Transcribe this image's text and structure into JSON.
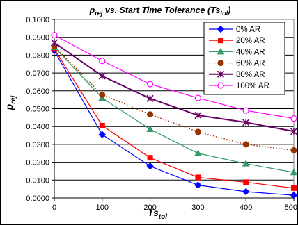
{
  "chart_data": {
    "type": "line",
    "title": {
      "main": "p",
      "main_sub": "rej",
      "rest": " vs. Start Time Tolerance (",
      "ts": "Ts",
      "ts_sub": "tol",
      "close": ")"
    },
    "xlabel": {
      "main": "Ts",
      "sub": "tol"
    },
    "ylabel": {
      "main": "p",
      "sub": "rej"
    },
    "x": [
      0,
      100,
      200,
      300,
      400,
      500
    ],
    "x_tick_labels": [
      "0",
      "100",
      "200",
      "300",
      "400",
      "500"
    ],
    "y_tick_labels": [
      "0.0000",
      "0.0100",
      "0.0200",
      "0.0300",
      "0.0400",
      "0.0500",
      "0.0600",
      "0.0700",
      "0.0800",
      "0.0900",
      "0.1000"
    ],
    "xlim": [
      0,
      500
    ],
    "ylim": [
      0,
      0.1
    ],
    "grid": "horizontal",
    "legend_position": "top-right",
    "series": [
      {
        "name": "0% AR",
        "values": [
          0.0825,
          0.0355,
          0.0178,
          0.0072,
          0.0035,
          0.0015
        ],
        "color": "#0000ff",
        "marker": "diamond",
        "dash": "solid"
      },
      {
        "name": "20% AR",
        "values": [
          0.0835,
          0.0405,
          0.0225,
          0.0115,
          0.0088,
          0.0055
        ],
        "color": "#ff0000",
        "marker": "square",
        "dash": "solid"
      },
      {
        "name": "40% AR",
        "values": [
          0.0845,
          0.056,
          0.0385,
          0.025,
          0.0192,
          0.0143
        ],
        "color": "#339966",
        "marker": "triangle",
        "dash": "solid"
      },
      {
        "name": "60% AR",
        "values": [
          0.085,
          0.0578,
          0.0468,
          0.037,
          0.03,
          0.0267
        ],
        "color": "#993300",
        "marker": "circle",
        "dash": "dotted"
      },
      {
        "name": "80% AR",
        "values": [
          0.087,
          0.0683,
          0.0557,
          0.0463,
          0.0423,
          0.0373
        ],
        "color": "#660066",
        "marker": "star",
        "dash": "solid"
      },
      {
        "name": "100% AR",
        "values": [
          0.0912,
          0.0768,
          0.0638,
          0.056,
          0.049,
          0.0445
        ],
        "color": "#ff00ff",
        "marker": "open-circle",
        "dash": "solid"
      }
    ]
  }
}
